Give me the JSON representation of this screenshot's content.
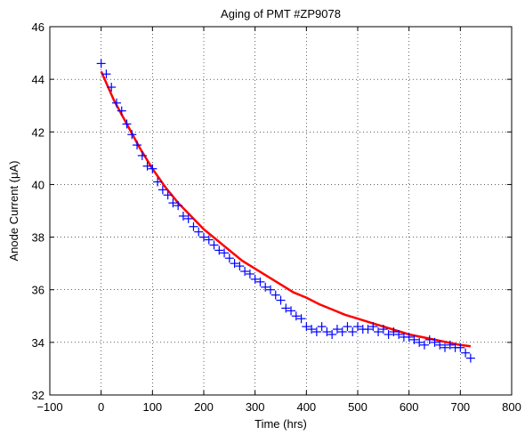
{
  "chart_data": {
    "type": "scatter",
    "title": "Aging of PMT #ZP9078",
    "xlabel": "Time (hrs)",
    "ylabel": "Anode Current (μA)",
    "xlim": [
      -100,
      800
    ],
    "ylim": [
      32,
      46
    ],
    "xticks": [
      -100,
      0,
      100,
      200,
      300,
      400,
      500,
      600,
      700,
      800
    ],
    "yticks": [
      32,
      34,
      36,
      38,
      40,
      42,
      44,
      46
    ],
    "xtick_labels": [
      "−100",
      "0",
      "100",
      "200",
      "300",
      "400",
      "500",
      "600",
      "700",
      "800"
    ],
    "ytick_labels": [
      "32",
      "34",
      "36",
      "38",
      "40",
      "42",
      "44",
      "46"
    ],
    "grid": true,
    "series": [
      {
        "kind": "scatter",
        "marker": "+",
        "color": "#0000ff",
        "x": [
          0,
          10,
          20,
          30,
          40,
          50,
          60,
          70,
          80,
          90,
          100,
          110,
          120,
          130,
          140,
          150,
          160,
          170,
          180,
          190,
          200,
          210,
          220,
          230,
          240,
          250,
          260,
          270,
          280,
          290,
          300,
          310,
          320,
          330,
          340,
          350,
          360,
          370,
          380,
          390,
          400,
          410,
          420,
          430,
          440,
          450,
          460,
          470,
          480,
          490,
          500,
          510,
          520,
          530,
          540,
          550,
          560,
          570,
          580,
          590,
          600,
          610,
          620,
          630,
          640,
          650,
          660,
          670,
          680,
          690,
          700,
          710,
          720
        ],
        "y": [
          44.6,
          44.2,
          43.7,
          43.1,
          42.8,
          42.3,
          41.9,
          41.5,
          41.1,
          40.7,
          40.6,
          40.1,
          39.8,
          39.6,
          39.3,
          39.2,
          38.8,
          38.7,
          38.4,
          38.2,
          38.0,
          37.9,
          37.7,
          37.5,
          37.4,
          37.2,
          37.0,
          36.9,
          36.7,
          36.6,
          36.4,
          36.3,
          36.1,
          36.0,
          35.8,
          35.6,
          35.3,
          35.2,
          35.0,
          34.9,
          34.6,
          34.5,
          34.4,
          34.6,
          34.4,
          34.3,
          34.5,
          34.4,
          34.6,
          34.4,
          34.6,
          34.5,
          34.5,
          34.6,
          34.4,
          34.5,
          34.3,
          34.4,
          34.3,
          34.2,
          34.2,
          34.1,
          34.0,
          33.9,
          34.1,
          34.0,
          33.9,
          33.8,
          33.9,
          33.8,
          33.8,
          33.6,
          33.4
        ]
      },
      {
        "kind": "line",
        "color": "#ff0000",
        "x": [
          0,
          25,
          50,
          75,
          100,
          125,
          150,
          175,
          200,
          225,
          250,
          275,
          300,
          325,
          350,
          375,
          400,
          425,
          450,
          475,
          500,
          525,
          550,
          575,
          600,
          625,
          650,
          675,
          700,
          720
        ],
        "y": [
          44.3,
          43.2,
          42.3,
          41.4,
          40.6,
          39.9,
          39.3,
          38.8,
          38.3,
          37.9,
          37.5,
          37.1,
          36.8,
          36.5,
          36.2,
          35.9,
          35.7,
          35.45,
          35.25,
          35.05,
          34.9,
          34.75,
          34.6,
          34.45,
          34.3,
          34.2,
          34.1,
          34.0,
          33.9,
          33.85
        ]
      }
    ]
  }
}
